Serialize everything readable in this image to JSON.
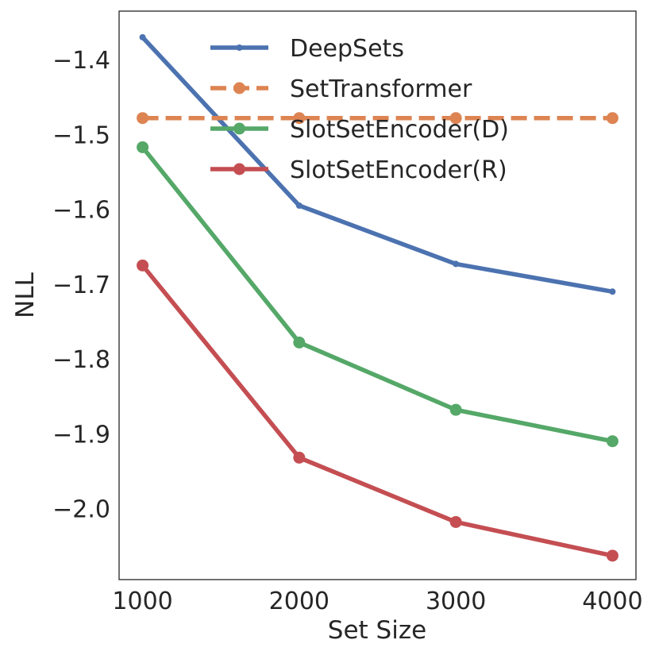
{
  "chart_data": {
    "type": "line",
    "title": "",
    "xlabel": "Set Size",
    "ylabel": "NLL",
    "x": [
      1000,
      2000,
      3000,
      4000
    ],
    "xlim": [
      850,
      4150
    ],
    "ylim": [
      -2.095,
      -1.335
    ],
    "xticks": [
      1000,
      2000,
      3000,
      4000
    ],
    "yticks": [
      -1.4,
      -1.5,
      -1.6,
      -1.7,
      -1.8,
      -1.9,
      -2.0
    ],
    "ytick_labels": [
      "−1.4",
      "−1.5",
      "−1.6",
      "−1.7",
      "−1.8",
      "−1.9",
      "−2.0"
    ],
    "grid": false,
    "legend_position": "top",
    "series": [
      {
        "name": "DeepSets",
        "values": [
          -1.37,
          -1.595,
          -1.673,
          -1.71
        ],
        "color": "#4c72b0",
        "style": "solid",
        "marker": "small"
      },
      {
        "name": "SetTransformer",
        "values": [
          -1.478,
          -1.478,
          -1.478,
          -1.478
        ],
        "color": "#dd8452",
        "style": "dashed",
        "marker": "circle"
      },
      {
        "name": "SlotSetEncoder(D)",
        "values": [
          -1.517,
          -1.778,
          -1.868,
          -1.91
        ],
        "color": "#55a868",
        "style": "solid",
        "marker": "circle"
      },
      {
        "name": "SlotSetEncoder(R)",
        "values": [
          -1.675,
          -1.932,
          -2.018,
          -2.063
        ],
        "color": "#c44e52",
        "style": "solid",
        "marker": "circle"
      }
    ]
  }
}
